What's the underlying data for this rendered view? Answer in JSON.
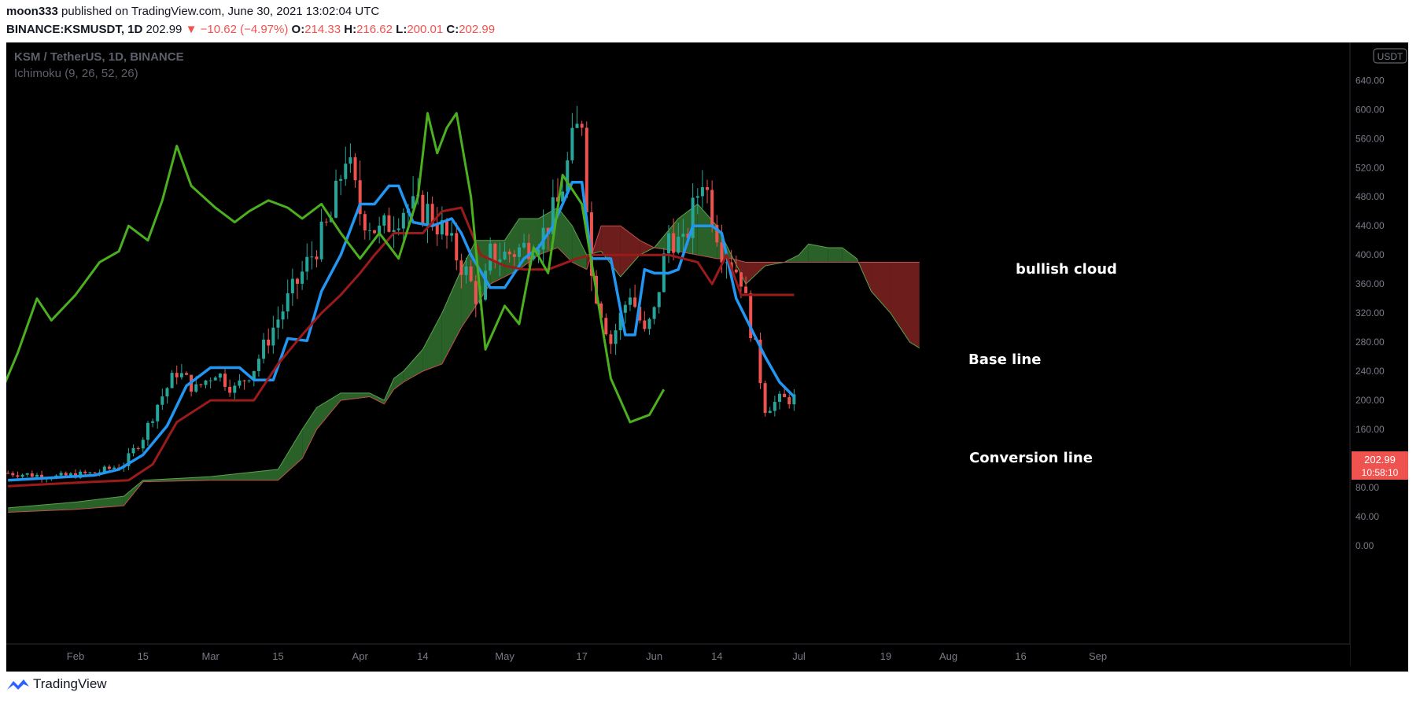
{
  "header": {
    "author": "moon333",
    "published": "published on TradingView.com, June 30, 2021 13:02:04 UTC",
    "symbol": "BINANCE:KSMUSDT, 1D",
    "last": "202.99",
    "change": "−10.62 (−4.97%)",
    "o_label": "O:",
    "o": "214.33",
    "h_label": "H:",
    "h": "216.62",
    "l_label": "L:",
    "l": "200.01",
    "c_label": "C:",
    "c": "202.99"
  },
  "chart": {
    "pair_title": "KSM / TetherUS, 1D, BINANCE",
    "indicator": "Ichimoku (9, 26, 52, 26)",
    "currency_badge": "USDT",
    "price_tag": "202.99",
    "countdown": "10:58:10",
    "annotations": {
      "bullish_cloud": "bullish cloud",
      "base_line": "Base line",
      "conversion_line": "Conversion line"
    },
    "colors": {
      "background": "#000000",
      "up_candle": "#26a69a",
      "down_candle": "#ef5350",
      "conversion": "#2196f3",
      "base": "#9b1b1b",
      "lagging": "#4caf1f",
      "cloud_bull": "#2e6b2e",
      "cloud_bear": "#7a2020"
    }
  },
  "footer": {
    "brand": "TradingView",
    "logo_icon": "tradingview-logo-icon"
  },
  "chart_data": {
    "type": "candlestick",
    "title": "KSM / TetherUS, 1D, BINANCE",
    "y_ticks": [
      "0.00",
      "40.00",
      "80.00",
      "120.00",
      "160.00",
      "200.00",
      "240.00",
      "280.00",
      "320.00",
      "360.00",
      "400.00",
      "440.00",
      "480.00",
      "520.00",
      "560.00",
      "600.00",
      "640.00"
    ],
    "ylim": [
      0,
      680
    ],
    "x_ticks": [
      "Feb",
      "15",
      "Mar",
      "15",
      "Apr",
      "14",
      "May",
      "17",
      "Jun",
      "14",
      "Jul",
      "19",
      "Aug",
      "16",
      "Sep"
    ],
    "x_tick_dates": [
      "2021-02-01",
      "2021-02-15",
      "2021-03-01",
      "2021-03-15",
      "2021-04-01",
      "2021-04-14",
      "2021-05-01",
      "2021-05-17",
      "2021-06-01",
      "2021-06-14",
      "2021-07-01",
      "2021-07-19",
      "2021-08-01",
      "2021-08-16",
      "2021-09-01"
    ],
    "start_date": "2021-01-18",
    "end_date": "2021-06-30",
    "close_anchors": [
      [
        "2021-01-18",
        100
      ],
      [
        "2021-01-28",
        95
      ],
      [
        "2021-02-05",
        100
      ],
      [
        "2021-02-11",
        112
      ],
      [
        "2021-02-15",
        150
      ],
      [
        "2021-02-18",
        195
      ],
      [
        "2021-02-22",
        240
      ],
      [
        "2021-02-26",
        215
      ],
      [
        "2021-03-02",
        240
      ],
      [
        "2021-03-06",
        215
      ],
      [
        "2021-03-10",
        245
      ],
      [
        "2021-03-14",
        300
      ],
      [
        "2021-03-18",
        350
      ],
      [
        "2021-03-22",
        400
      ],
      [
        "2021-03-26",
        450
      ],
      [
        "2021-03-29",
        540
      ],
      [
        "2021-04-01",
        460
      ],
      [
        "2021-04-05",
        430
      ],
      [
        "2021-04-10",
        465
      ],
      [
        "2021-04-15",
        460
      ],
      [
        "2021-04-18",
        435
      ],
      [
        "2021-04-23",
        375
      ],
      [
        "2021-04-26",
        330
      ],
      [
        "2021-04-28",
        400
      ],
      [
        "2021-05-01",
        400
      ],
      [
        "2021-05-05",
        410
      ],
      [
        "2021-05-09",
        430
      ],
      [
        "2021-05-12",
        470
      ],
      [
        "2021-05-15",
        550
      ],
      [
        "2021-05-17",
        590
      ],
      [
        "2021-05-19",
        370
      ],
      [
        "2021-05-23",
        280
      ],
      [
        "2021-05-27",
        350
      ],
      [
        "2021-05-30",
        290
      ],
      [
        "2021-06-01",
        320
      ],
      [
        "2021-06-04",
        430
      ],
      [
        "2021-06-07",
        410
      ],
      [
        "2021-06-11",
        510
      ],
      [
        "2021-06-15",
        410
      ],
      [
        "2021-06-19",
        370
      ],
      [
        "2021-06-21",
        300
      ],
      [
        "2021-06-22",
        270
      ],
      [
        "2021-06-24",
        190
      ],
      [
        "2021-06-27",
        200
      ],
      [
        "2021-06-30",
        203
      ]
    ],
    "series": [
      {
        "name": "Conversion line",
        "points": [
          [
            "2021-01-18",
            90
          ],
          [
            "2021-02-05",
            97
          ],
          [
            "2021-02-10",
            105
          ],
          [
            "2021-02-15",
            125
          ],
          [
            "2021-02-20",
            165
          ],
          [
            "2021-02-24",
            220
          ],
          [
            "2021-03-01",
            245
          ],
          [
            "2021-03-07",
            245
          ],
          [
            "2021-03-10",
            228
          ],
          [
            "2021-03-14",
            228
          ],
          [
            "2021-03-17",
            285
          ],
          [
            "2021-03-21",
            282
          ],
          [
            "2021-03-24",
            350
          ],
          [
            "2021-03-28",
            400
          ],
          [
            "2021-04-01",
            470
          ],
          [
            "2021-04-04",
            470
          ],
          [
            "2021-04-07",
            495
          ],
          [
            "2021-04-09",
            495
          ],
          [
            "2021-04-12",
            445
          ],
          [
            "2021-04-16",
            440
          ],
          [
            "2021-04-20",
            450
          ],
          [
            "2021-04-22",
            430
          ],
          [
            "2021-04-24",
            400
          ],
          [
            "2021-04-28",
            355
          ],
          [
            "2021-05-01",
            355
          ],
          [
            "2021-05-05",
            395
          ],
          [
            "2021-05-08",
            410
          ],
          [
            "2021-05-11",
            440
          ],
          [
            "2021-05-15",
            500
          ],
          [
            "2021-05-17",
            500
          ],
          [
            "2021-05-19",
            395
          ],
          [
            "2021-05-23",
            395
          ],
          [
            "2021-05-26",
            290
          ],
          [
            "2021-05-28",
            290
          ],
          [
            "2021-05-30",
            380
          ],
          [
            "2021-06-01",
            375
          ],
          [
            "2021-06-04",
            375
          ],
          [
            "2021-06-06",
            380
          ],
          [
            "2021-06-09",
            440
          ],
          [
            "2021-06-13",
            440
          ],
          [
            "2021-06-15",
            430
          ],
          [
            "2021-06-18",
            340
          ],
          [
            "2021-06-21",
            300
          ],
          [
            "2021-06-24",
            260
          ],
          [
            "2021-06-27",
            225
          ],
          [
            "2021-06-30",
            205
          ]
        ]
      },
      {
        "name": "Base line",
        "points": [
          [
            "2021-01-18",
            82
          ],
          [
            "2021-02-05",
            88
          ],
          [
            "2021-02-12",
            90
          ],
          [
            "2021-02-17",
            112
          ],
          [
            "2021-02-22",
            170
          ],
          [
            "2021-03-01",
            200
          ],
          [
            "2021-03-10",
            200
          ],
          [
            "2021-03-15",
            250
          ],
          [
            "2021-03-20",
            290
          ],
          [
            "2021-03-24",
            320
          ],
          [
            "2021-03-28",
            345
          ],
          [
            "2021-04-01",
            375
          ],
          [
            "2021-04-04",
            400
          ],
          [
            "2021-04-08",
            430
          ],
          [
            "2021-04-14",
            430
          ],
          [
            "2021-04-18",
            460
          ],
          [
            "2021-04-22",
            465
          ],
          [
            "2021-04-26",
            400
          ],
          [
            "2021-05-01",
            385
          ],
          [
            "2021-05-05",
            380
          ],
          [
            "2021-05-10",
            380
          ],
          [
            "2021-05-16",
            395
          ],
          [
            "2021-05-19",
            400
          ],
          [
            "2021-05-24",
            400
          ],
          [
            "2021-05-30",
            400
          ],
          [
            "2021-06-04",
            400
          ],
          [
            "2021-06-10",
            390
          ],
          [
            "2021-06-13",
            360
          ],
          [
            "2021-06-16",
            400
          ],
          [
            "2021-06-19",
            345
          ],
          [
            "2021-06-24",
            345
          ],
          [
            "2021-06-30",
            345
          ]
        ]
      },
      {
        "name": "Lagging span",
        "points": [
          [
            "2020-12-20",
            155
          ],
          [
            "2020-12-25",
            230
          ],
          [
            "2020-12-29",
            215
          ],
          [
            "2021-01-02",
            225
          ],
          [
            "2021-01-05",
            270
          ],
          [
            "2021-01-09",
            215
          ],
          [
            "2021-01-13",
            230
          ],
          [
            "2021-01-17",
            218
          ],
          [
            "2021-01-20",
            265
          ],
          [
            "2021-01-24",
            340
          ],
          [
            "2021-01-27",
            310
          ],
          [
            "2021-02-01",
            345
          ],
          [
            "2021-02-06",
            390
          ],
          [
            "2021-02-10",
            405
          ],
          [
            "2021-02-12",
            440
          ],
          [
            "2021-02-16",
            420
          ],
          [
            "2021-02-19",
            475
          ],
          [
            "2021-02-22",
            550
          ],
          [
            "2021-02-25",
            495
          ],
          [
            "2021-03-02",
            465
          ],
          [
            "2021-03-06",
            445
          ],
          [
            "2021-03-09",
            460
          ],
          [
            "2021-03-13",
            475
          ],
          [
            "2021-03-17",
            465
          ],
          [
            "2021-03-20",
            450
          ],
          [
            "2021-03-24",
            470
          ],
          [
            "2021-03-28",
            430
          ],
          [
            "2021-04-01",
            395
          ],
          [
            "2021-04-05",
            430
          ],
          [
            "2021-04-09",
            395
          ],
          [
            "2021-04-13",
            480
          ],
          [
            "2021-04-15",
            595
          ],
          [
            "2021-04-17",
            540
          ],
          [
            "2021-04-19",
            575
          ],
          [
            "2021-04-21",
            595
          ],
          [
            "2021-04-24",
            480
          ],
          [
            "2021-04-27",
            270
          ],
          [
            "2021-05-01",
            330
          ],
          [
            "2021-05-04",
            305
          ],
          [
            "2021-05-07",
            410
          ],
          [
            "2021-05-10",
            375
          ],
          [
            "2021-05-13",
            510
          ],
          [
            "2021-05-17",
            470
          ],
          [
            "2021-05-20",
            350
          ],
          [
            "2021-05-23",
            230
          ],
          [
            "2021-05-27",
            170
          ],
          [
            "2021-05-31",
            180
          ],
          [
            "2021-06-03",
            215
          ]
        ]
      }
    ],
    "cloud": [
      [
        "2021-01-18",
        52,
        46
      ],
      [
        "2021-02-01",
        60,
        50
      ],
      [
        "2021-02-11",
        68,
        55
      ],
      [
        "2021-02-15",
        90,
        88
      ],
      [
        "2021-03-01",
        95,
        90
      ],
      [
        "2021-03-15",
        105,
        90
      ],
      [
        "2021-03-20",
        160,
        120
      ],
      [
        "2021-03-23",
        190,
        160
      ],
      [
        "2021-03-28",
        210,
        200
      ],
      [
        "2021-04-03",
        210,
        205
      ],
      [
        "2021-04-06",
        200,
        195
      ],
      [
        "2021-04-08",
        230,
        215
      ],
      [
        "2021-04-10",
        240,
        225
      ],
      [
        "2021-04-14",
        270,
        240
      ],
      [
        "2021-04-18",
        320,
        250
      ],
      [
        "2021-04-22",
        380,
        300
      ],
      [
        "2021-04-25",
        420,
        330
      ],
      [
        "2021-04-28",
        420,
        360
      ],
      [
        "2021-05-01",
        420,
        370
      ],
      [
        "2021-05-04",
        450,
        380
      ],
      [
        "2021-05-08",
        450,
        400
      ],
      [
        "2021-05-12",
        465,
        410
      ],
      [
        "2021-05-15",
        440,
        390
      ],
      [
        "2021-05-18",
        400,
        380
      ],
      [
        "2021-05-21",
        405,
        440
      ],
      [
        "2021-05-25",
        370,
        440
      ],
      [
        "2021-05-29",
        400,
        420
      ],
      [
        "2021-06-01",
        410,
        410
      ],
      [
        "2021-06-06",
        450,
        405
      ],
      [
        "2021-06-10",
        470,
        400
      ],
      [
        "2021-06-14",
        440,
        395
      ],
      [
        "2021-06-17",
        400,
        395
      ],
      [
        "2021-06-20",
        360,
        390
      ],
      [
        "2021-06-24",
        385,
        390
      ],
      [
        "2021-06-28",
        390,
        390
      ],
      [
        "2021-07-01",
        400,
        390
      ],
      [
        "2021-07-03",
        415,
        390
      ],
      [
        "2021-07-07",
        410,
        390
      ],
      [
        "2021-07-10",
        410,
        390
      ],
      [
        "2021-07-13",
        395,
        390
      ],
      [
        "2021-07-16",
        350,
        390
      ],
      [
        "2021-07-20",
        320,
        390
      ],
      [
        "2021-07-24",
        280,
        390
      ],
      [
        "2021-07-26",
        272,
        390
      ]
    ]
  }
}
